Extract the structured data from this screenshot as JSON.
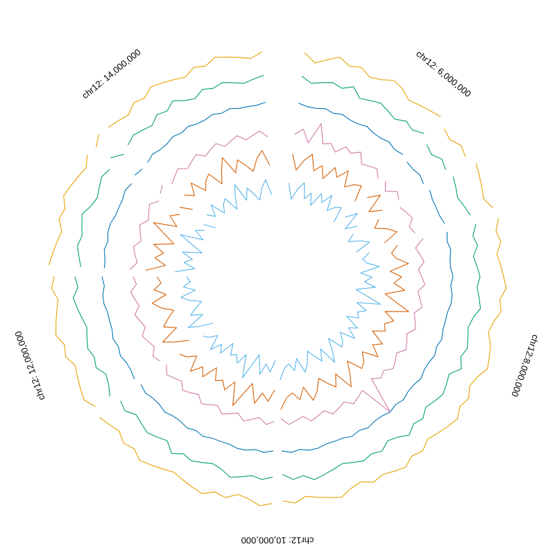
{
  "chart_data": {
    "type": "line",
    "layout": "circular",
    "region": {
      "chrom": "chr12",
      "start": 5000000,
      "end": 15000000
    },
    "axis_labels": [
      {
        "pos": 6000000,
        "text": "chr12: 6,000,000"
      },
      {
        "pos": 8000000,
        "text": "chr12:8,000,000"
      },
      {
        "pos": 10000000,
        "text": "chr12: 10,000,000"
      },
      {
        "pos": 12000000,
        "text": "chr12: 12,000,000"
      },
      {
        "pos": 14000000,
        "text": "chr12: 14,000,000"
      }
    ],
    "gaps": [
      5010000,
      6180000,
      6560000,
      7000000,
      10000000,
      11500000,
      12640000,
      13520000,
      13720000
    ],
    "series": [
      {
        "color": "#E69F00",
        "values": [
          4,
          5,
          2,
          4,
          6,
          4,
          5,
          3,
          4,
          6,
          5,
          3,
          4,
          5,
          6,
          4,
          3,
          5,
          4,
          6,
          5,
          4,
          3,
          5,
          6,
          4,
          5,
          3,
          4,
          5,
          6,
          4,
          5,
          3,
          2,
          4,
          5,
          6,
          4,
          3,
          5,
          4,
          6,
          5,
          4,
          3,
          5,
          4,
          6,
          5,
          4,
          5,
          3,
          4,
          6,
          5,
          4,
          3,
          5,
          4,
          5,
          6,
          4,
          3,
          5,
          4,
          6,
          5,
          4,
          3,
          4,
          5,
          6,
          4,
          5,
          3,
          4,
          5,
          4,
          6,
          5,
          4,
          3,
          5,
          4,
          6,
          5,
          4,
          3,
          5,
          4,
          6,
          5,
          4,
          3,
          5,
          4,
          6,
          5,
          4,
          3,
          5,
          4,
          6,
          5,
          4,
          3,
          5,
          4,
          6,
          5,
          4,
          3,
          5,
          4,
          6,
          5,
          4,
          3,
          5
        ]
      },
      {
        "color": "#009E73",
        "values": [
          4,
          5,
          3,
          4,
          5,
          4,
          6,
          3,
          4,
          5,
          4,
          3,
          5,
          4,
          6,
          4,
          3,
          5,
          4,
          5,
          4,
          3,
          4,
          5,
          6,
          4,
          5,
          3,
          4,
          5,
          4,
          5,
          6,
          4,
          3,
          4,
          5,
          4,
          6,
          3,
          4,
          5,
          4,
          3,
          5,
          4,
          6,
          4,
          3,
          5,
          4,
          5,
          4,
          3,
          4,
          5,
          6,
          4,
          5,
          3,
          4,
          5,
          4,
          5,
          6,
          4,
          3,
          4,
          5,
          4,
          6,
          3,
          4,
          5,
          4,
          3,
          5,
          4,
          6,
          4,
          3,
          5,
          4,
          5,
          4,
          3,
          4,
          5,
          6,
          4,
          5,
          3,
          4,
          5,
          4,
          5,
          6,
          4,
          3,
          4,
          5,
          4,
          6,
          3,
          4,
          5,
          4,
          3,
          5,
          4,
          6,
          4,
          3,
          5,
          4,
          5,
          4,
          3,
          4,
          5
        ]
      },
      {
        "color": "#0072B2",
        "values": [
          4,
          5,
          4,
          4,
          5,
          4,
          5,
          4,
          4,
          5,
          4,
          4,
          5,
          4,
          5,
          4,
          4,
          5,
          4,
          5,
          4,
          4,
          4,
          5,
          5,
          4,
          5,
          4,
          4,
          5,
          4,
          5,
          5,
          4,
          4,
          4,
          5,
          4,
          5,
          4,
          4,
          5,
          4,
          4,
          5,
          4,
          5,
          4,
          4,
          5,
          4,
          5,
          4,
          4,
          4,
          5,
          5,
          4,
          5,
          4,
          4,
          5,
          4,
          5,
          5,
          4,
          4,
          4,
          5,
          4,
          5,
          4,
          4,
          5,
          4,
          4,
          5,
          4,
          5,
          4,
          4,
          5,
          4,
          5,
          4,
          4,
          4,
          5,
          5,
          4,
          5,
          4,
          4,
          5,
          4,
          5,
          5,
          4,
          4,
          4,
          5,
          4,
          5,
          4,
          4,
          5,
          4,
          4,
          5,
          4,
          5,
          4,
          4,
          5,
          4,
          5,
          4,
          4,
          4,
          5
        ]
      },
      {
        "color": "#CC79A7",
        "values": [
          3,
          4,
          6,
          2,
          9,
          3,
          4,
          2,
          5,
          4,
          6,
          3,
          4,
          5,
          3,
          4,
          2,
          5,
          4,
          3,
          4,
          5,
          3,
          4,
          6,
          3,
          4,
          5,
          3,
          4,
          5,
          3,
          4,
          5,
          3,
          4,
          5,
          3,
          4,
          5,
          3,
          4,
          5,
          3,
          4,
          2,
          14,
          3,
          4,
          5,
          3,
          4,
          5,
          3,
          4,
          5,
          3,
          4,
          5,
          3,
          4,
          5,
          3,
          4,
          5,
          3,
          4,
          5,
          3,
          4,
          5,
          3,
          4,
          5,
          3,
          4,
          5,
          3,
          4,
          5,
          3,
          4,
          5,
          3,
          4,
          5,
          3,
          4,
          5,
          3,
          4,
          5,
          3,
          4,
          5,
          3,
          4,
          5,
          3,
          4,
          5,
          3,
          4,
          5,
          3,
          4,
          5,
          3,
          4,
          5,
          3,
          4,
          5,
          3,
          4,
          5,
          3,
          4,
          5,
          3
        ]
      },
      {
        "color": "#D55E00",
        "values": [
          3,
          6,
          2,
          5,
          7,
          3,
          5,
          2,
          6,
          4,
          7,
          3,
          5,
          6,
          2,
          5,
          8,
          3,
          6,
          4,
          2,
          5,
          7,
          3,
          6,
          4,
          5,
          8,
          3,
          6,
          4,
          7,
          2,
          5,
          9,
          3,
          6,
          4,
          5,
          2,
          6,
          4,
          7,
          3,
          5,
          6,
          2,
          5,
          8,
          3,
          6,
          4,
          2,
          5,
          7,
          3,
          6,
          4,
          5,
          8,
          3,
          6,
          4,
          7,
          2,
          5,
          9,
          3,
          6,
          4,
          5,
          2,
          6,
          4,
          7,
          3,
          5,
          6,
          2,
          5,
          8,
          3,
          6,
          4,
          2,
          5,
          7,
          3,
          6,
          4,
          5,
          8,
          3,
          6,
          4,
          7,
          2,
          5,
          9,
          3,
          6,
          4,
          5,
          2,
          6,
          4,
          7,
          3,
          5,
          6,
          2,
          5,
          8,
          3,
          6,
          4,
          2,
          5,
          7,
          3
        ]
      },
      {
        "color": "#56B4E9",
        "values": [
          4,
          7,
          3,
          6,
          8,
          4,
          6,
          3,
          7,
          5,
          8,
          4,
          6,
          7,
          3,
          6,
          9,
          4,
          7,
          5,
          3,
          6,
          8,
          4,
          7,
          5,
          6,
          9,
          4,
          7,
          5,
          8,
          3,
          6,
          10,
          4,
          7,
          5,
          6,
          3,
          7,
          5,
          8,
          4,
          6,
          7,
          3,
          6,
          9,
          4,
          7,
          5,
          3,
          6,
          8,
          4,
          7,
          5,
          6,
          9,
          4,
          7,
          5,
          8,
          3,
          6,
          10,
          4,
          7,
          5,
          6,
          3,
          7,
          5,
          8,
          4,
          6,
          7,
          3,
          6,
          9,
          4,
          7,
          5,
          3,
          6,
          8,
          4,
          7,
          5,
          6,
          9,
          4,
          7,
          5,
          8,
          3,
          6,
          10,
          4,
          7,
          5,
          6,
          3,
          7,
          5,
          8,
          4,
          6,
          7,
          3,
          6,
          9,
          4,
          7,
          5,
          3,
          6,
          8,
          4
        ]
      }
    ]
  }
}
